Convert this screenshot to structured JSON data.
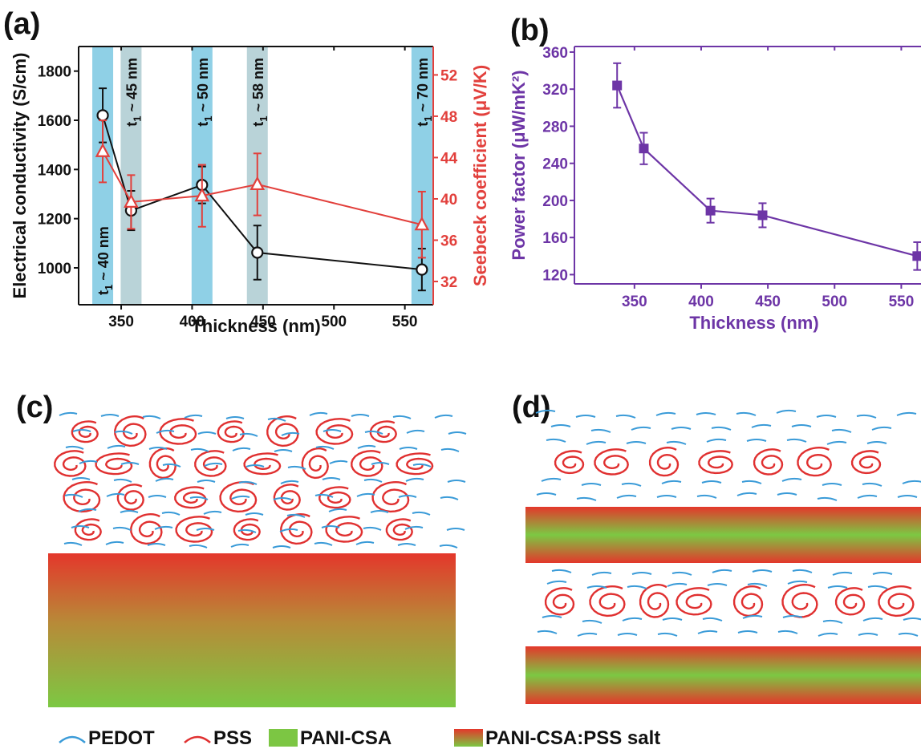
{
  "panels": {
    "a": "(a)",
    "b": "(b)",
    "c": "(c)",
    "d": "(d)"
  },
  "colors": {
    "pedot": "#3a9bd8",
    "pss": "#e03030",
    "band_blue": "#8fd0e6",
    "band_gray": "#b9d3d8",
    "conductivity": "#111111",
    "seebeck": "#e2403c",
    "power_factor": "#6d35a6",
    "pani_green": "#7cc643",
    "pani_red": "#e5382a"
  },
  "chart_data": [
    {
      "id": "a",
      "type": "line",
      "xlabel": "Thickness (nm)",
      "xlim": [
        320,
        570
      ],
      "xticks": [
        "350",
        "400",
        "450",
        "500",
        "550"
      ],
      "ylabel": "Electrical conductivity (S/cm)",
      "ylim": [
        850,
        1900
      ],
      "yticks": [
        "1000",
        "1200",
        "1400",
        "1600",
        "1800"
      ],
      "y2label": "Seebeck coefficient (μV/K)",
      "y2lim": [
        29.75,
        54.75
      ],
      "y2ticks": [
        "32",
        "36",
        "40",
        "44",
        "48",
        "52"
      ],
      "bands": [
        {
          "x": 337,
          "label": "t",
          "sub": "1",
          "suffix": " ~ 40 nm",
          "color": "blue",
          "text_pos": "bottom"
        },
        {
          "x": 357,
          "label": "t",
          "sub": "1",
          "suffix": " ~ 45 nm",
          "color": "gray",
          "text_pos": "top"
        },
        {
          "x": 407,
          "label": "t",
          "sub": "1",
          "suffix": " ~ 50 nm",
          "color": "blue",
          "text_pos": "top"
        },
        {
          "x": 446,
          "label": "t",
          "sub": "1",
          "suffix": " ~ 58 nm",
          "color": "gray",
          "text_pos": "top"
        },
        {
          "x": 562,
          "label": "t",
          "sub": "1",
          "suffix": " ~ 70 nm",
          "color": "blue",
          "text_pos": "top"
        }
      ],
      "series": [
        {
          "axis": "left",
          "marker": "circle",
          "x": [
            337,
            357,
            407,
            446,
            562
          ],
          "y": [
            1620,
            1233,
            1337,
            1062,
            993
          ],
          "err": [
            110,
            80,
            75,
            110,
            85
          ]
        },
        {
          "axis": "right",
          "marker": "triangle",
          "x": [
            337,
            357,
            407,
            446,
            562
          ],
          "y": [
            44.6,
            39.7,
            40.3,
            41.4,
            37.5
          ],
          "err": [
            3.0,
            2.6,
            3.0,
            3.0,
            3.2
          ]
        }
      ]
    },
    {
      "id": "b",
      "type": "line",
      "xlabel": "Thickness (nm)",
      "xlim": [
        305,
        572
      ],
      "xticks": [
        "350",
        "400",
        "450",
        "500",
        "550"
      ],
      "ylabel": "Power factor (μW/mK²)",
      "ylim": [
        110,
        366
      ],
      "yticks": [
        "120",
        "160",
        "200",
        "240",
        "280",
        "320",
        "360"
      ],
      "series": [
        {
          "marker": "square",
          "x": [
            337,
            357,
            407,
            446,
            562
          ],
          "y": [
            324,
            256,
            189,
            184,
            140
          ],
          "err": [
            24,
            17,
            13,
            13,
            15
          ]
        }
      ]
    }
  ],
  "legend": [
    {
      "kind": "wave",
      "color": "pedot",
      "label": "PEDOT"
    },
    {
      "kind": "wave",
      "color": "pss",
      "label": "PSS"
    },
    {
      "kind": "solid",
      "label": "PANI-CSA"
    },
    {
      "kind": "gradient",
      "label": "PANI-CSA:PSS salt"
    }
  ]
}
